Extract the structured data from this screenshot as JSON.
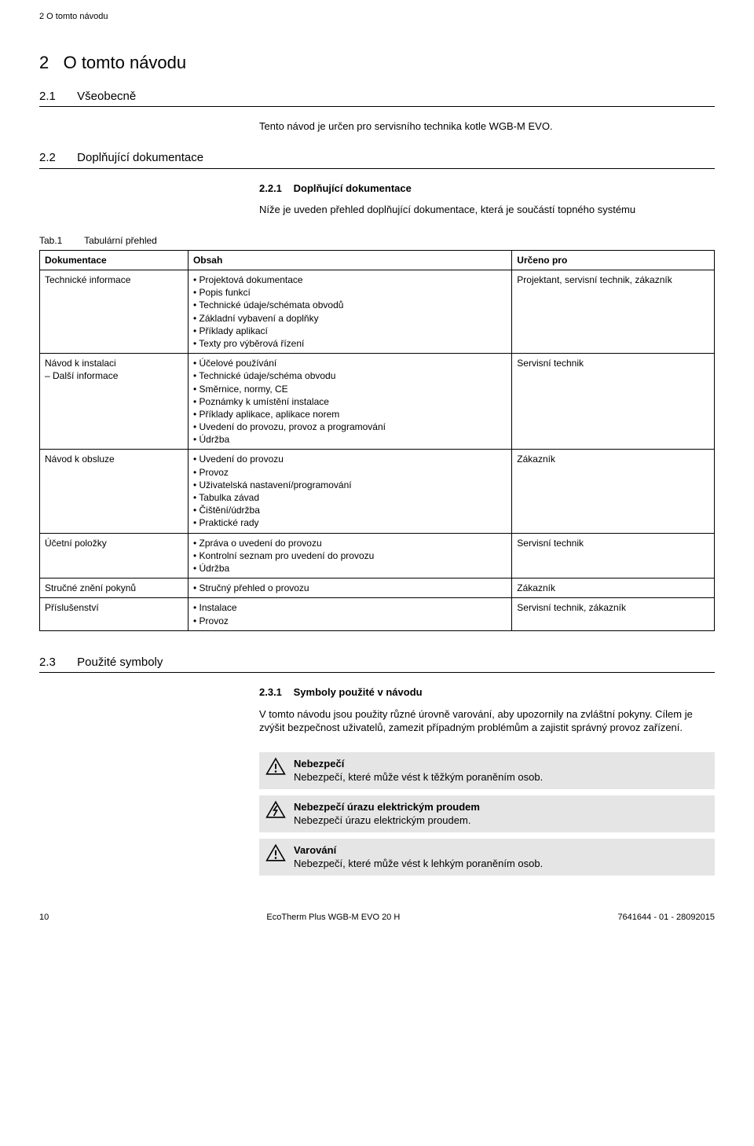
{
  "runningHeader": "2 O tomto návodu",
  "section": {
    "num": "2",
    "title": "O tomto návodu"
  },
  "sub21": {
    "num": "2.1",
    "title": "Všeobecně"
  },
  "intro21": "Tento návod je určen pro servisního technika kotle WGB-M EVO.",
  "sub22": {
    "num": "2.2",
    "title": "Doplňující dokumentace"
  },
  "sub221": {
    "num": "2.2.1",
    "title": "Doplňující dokumentace"
  },
  "intro221": "Níže je uveden přehled doplňující dokumentace, která je součástí topného systému",
  "tabCaption": {
    "lbl": "Tab.1",
    "title": "Tabulární přehled"
  },
  "table": {
    "headers": [
      "Dokumentace",
      "Obsah",
      "Určeno pro"
    ],
    "rows": [
      {
        "c0": "Technické informace",
        "c1": [
          "Projektová dokumentace",
          "Popis funkcí",
          "Technické údaje/schémata obvodů",
          "Základní vybavení a doplňky",
          "Příklady aplikací",
          "Texty pro výběrová řízení"
        ],
        "c2": "Projektant, servisní technik, zákazník"
      },
      {
        "c0": "Návod k instalaci\n– Další informace",
        "c1": [
          "Účelové používání",
          "Technické údaje/schéma obvodu",
          "Směrnice, normy, CE",
          "Poznámky k umístění instalace",
          "Příklady aplikace, aplikace norem",
          "Uvedení do provozu, provoz a programování",
          "Údržba"
        ],
        "c2": "Servisní technik"
      },
      {
        "c0": "Návod k obsluze",
        "c1": [
          "Uvedení do provozu",
          "Provoz",
          "Uživatelská nastavení/programování",
          "Tabulka závad",
          "Čištění/údržba",
          "Praktické rady"
        ],
        "c2": "Zákazník"
      },
      {
        "c0": "Účetní položky",
        "c1": [
          "Zpráva o uvedení do provozu",
          "Kontrolní seznam pro uvedení do provozu",
          "Údržba"
        ],
        "c2": "Servisní technik"
      },
      {
        "c0": "Stručné znění pokynů",
        "c1": [
          "Stručný přehled o provozu"
        ],
        "c2": "Zákazník"
      },
      {
        "c0": "Příslušenství",
        "c1": [
          "Instalace",
          "Provoz"
        ],
        "c2": "Servisní technik, zákazník"
      }
    ]
  },
  "sub23": {
    "num": "2.3",
    "title": "Použité symboly"
  },
  "sub231": {
    "num": "2.3.1",
    "title": "Symboly použité v návodu"
  },
  "intro231": "V tomto návodu jsou použity různé úrovně varování, aby upozornily na zvláštní pokyny. Cílem je zvýšit bezpečnost uživatelů, zamezit případným problémům a zajistit správný provoz zařízení.",
  "warnings": [
    {
      "type": "exclaim",
      "title": "Nebezpečí",
      "text": "Nebezpečí, které může vést k těžkým poraněním osob."
    },
    {
      "type": "bolt",
      "title": "Nebezpečí úrazu elektrickým proudem",
      "text": "Nebezpečí úrazu elektrickým proudem."
    },
    {
      "type": "exclaim",
      "title": "Varování",
      "text": "Nebezpečí, které může vést k lehkým poraněním osob."
    }
  ],
  "footer": {
    "page": "10",
    "product": "EcoTherm Plus WGB-M EVO 20 H",
    "docref": "7641644 - 01 - 28092015"
  }
}
